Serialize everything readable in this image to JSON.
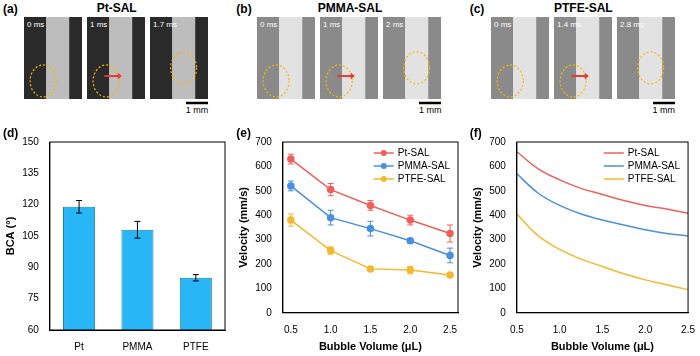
{
  "image_panels": [
    {
      "label": "(a)",
      "title": "Pt-SAL",
      "frames": [
        "0 ms",
        "1 ms",
        "1.7 ms"
      ],
      "scale_bar": "1 mm"
    },
    {
      "label": "(b)",
      "title": "PMMA-SAL",
      "frames": [
        "0 ms",
        "1 ms",
        "2 ms"
      ],
      "scale_bar": "1 mm"
    },
    {
      "label": "(c)",
      "title": "PTFE-SAL",
      "frames": [
        "0 ms",
        "1.4 ms",
        "2.8 ms"
      ],
      "scale_bar": "1 mm"
    }
  ],
  "chart_data": [
    {
      "panel_label": "(d)",
      "type": "bar",
      "categories": [
        "Pt",
        "PMMA",
        "PTFE"
      ],
      "values": [
        119,
        108,
        85
      ],
      "errors": [
        3,
        4,
        1.5
      ],
      "color": "#29b6f6",
      "y_label": "BCA (°)",
      "ylim": [
        60,
        150
      ],
      "yticks": [
        60,
        75,
        90,
        105,
        120,
        135,
        150
      ],
      "grid": false
    },
    {
      "panel_label": "(e)",
      "type": "line",
      "x": [
        0.5,
        1,
        1.5,
        2,
        2.5
      ],
      "series": [
        {
          "name": "Pt-SAL",
          "color": "#f0605a",
          "values": [
            630,
            505,
            440,
            380,
            325
          ],
          "errors": [
            20,
            25,
            20,
            20,
            35
          ]
        },
        {
          "name": "PMMA-SAL",
          "color": "#4a8fe0",
          "values": [
            520,
            390,
            345,
            295,
            235
          ],
          "errors": [
            20,
            30,
            30,
            10,
            30
          ]
        },
        {
          "name": "PTFE-SAL",
          "color": "#f5b82e",
          "values": [
            380,
            255,
            180,
            175,
            155
          ],
          "errors": [
            25,
            15,
            5,
            15,
            5
          ]
        }
      ],
      "marker": "circle",
      "line_style": "solid",
      "x_label": "Bubble Volume (μL)",
      "y_label": "Velocity (mm/s)",
      "xlim": [
        0.4,
        2.6
      ],
      "xticks": [
        0.5,
        {
          "value": 1,
          "label": "1.0"
        },
        1.5,
        {
          "value": 2,
          "label": "2.0"
        },
        2.5
      ],
      "ylim": [
        0,
        700
      ],
      "yticks": [
        0,
        100,
        200,
        300,
        400,
        500,
        600,
        700
      ],
      "grid": false,
      "legend": "top-right"
    },
    {
      "panel_label": "(f)",
      "type": "line",
      "x": [
        0.5,
        0.75,
        1,
        1.25,
        1.5,
        1.75,
        2,
        2.25,
        2.5
      ],
      "series": [
        {
          "name": "Pt-SAL",
          "color": "#f0605a",
          "values": [
            660,
            590,
            545,
            510,
            485,
            460,
            440,
            425,
            408
          ]
        },
        {
          "name": "PMMA-SAL",
          "color": "#4a8fe0",
          "values": [
            570,
            490,
            440,
            405,
            380,
            360,
            340,
            325,
            315
          ]
        },
        {
          "name": "PTFE-SAL",
          "color": "#f5b82e",
          "values": [
            405,
            315,
            260,
            220,
            190,
            160,
            135,
            115,
            95
          ]
        }
      ],
      "marker": "none",
      "line_style": "smooth",
      "x_label": "Bubble Volume (μL)",
      "y_label": "Velocity (mm/s)",
      "xlim": [
        0.5,
        2.5
      ],
      "xticks": [
        0.5,
        {
          "value": 1,
          "label": "1.0"
        },
        1.5,
        {
          "value": 2,
          "label": "2.0"
        },
        2.5
      ],
      "ylim": [
        0,
        700
      ],
      "yticks": [
        0,
        100,
        200,
        300,
        400,
        500,
        600,
        700
      ],
      "grid": false,
      "legend": "top-right"
    }
  ]
}
